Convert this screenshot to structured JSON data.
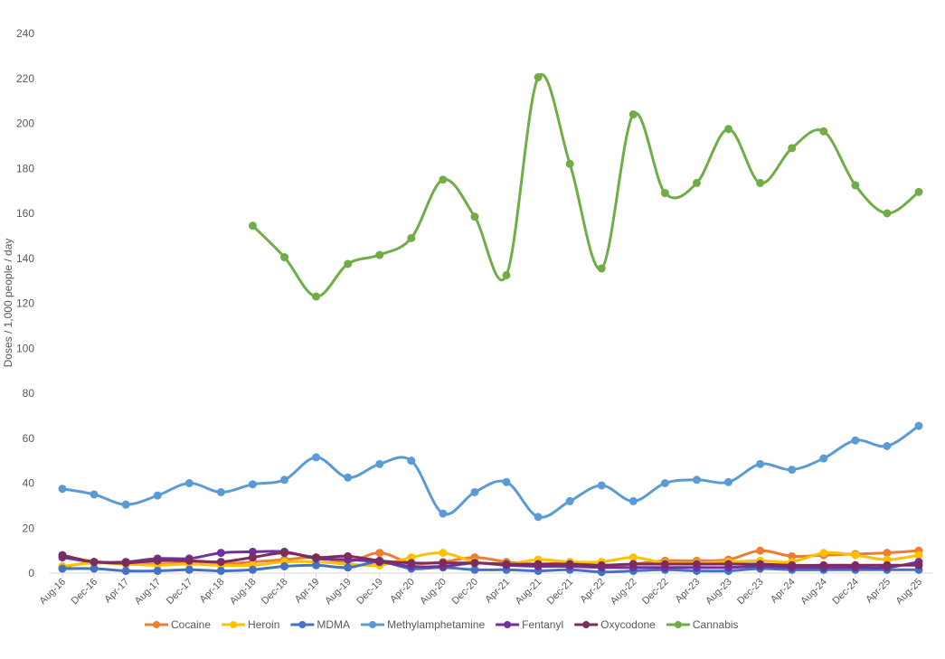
{
  "chart_data": {
    "type": "line",
    "title": "",
    "xlabel": "",
    "ylabel": "Doses / 1,000 people / day",
    "ylim": [
      0,
      240
    ],
    "yticks": [
      0,
      20,
      40,
      60,
      80,
      100,
      120,
      140,
      160,
      180,
      200,
      220,
      240
    ],
    "grid": false,
    "legend_position": "bottom",
    "smooth": true,
    "categories": [
      "Aug-16",
      "Dec-16",
      "Apr-17",
      "Aug-17",
      "Dec-17",
      "Apr-18",
      "Aug-18",
      "Dec-18",
      "Apr-19",
      "Aug-19",
      "Dec-19",
      "Apr-20",
      "Aug-20",
      "Dec-20",
      "Apr-21",
      "Aug-21",
      "Dec-21",
      "Apr-22",
      "Aug-22",
      "Dec-22",
      "Apr-23",
      "Aug-23",
      "Dec-23",
      "Apr-24",
      "Aug-24",
      "Dec-24",
      "Apr-25",
      "Aug-25"
    ],
    "series": [
      {
        "name": "Cocaine",
        "color": "#ED7D31",
        "values": [
          2.5,
          5,
          4,
          4,
          4.5,
          4,
          5,
          6,
          7,
          5,
          9,
          4.5,
          5,
          7,
          5,
          4,
          4.5,
          3,
          4,
          5.5,
          5.5,
          6,
          10,
          7.5,
          8,
          8.5,
          9,
          10
        ]
      },
      {
        "name": "Heroin",
        "color": "#FFC000",
        "values": [
          3,
          4.5,
          4,
          3.5,
          4,
          3.5,
          3.5,
          5,
          5,
          4,
          3.5,
          7,
          9,
          5,
          4,
          6,
          5,
          5,
          7,
          4.5,
          4.5,
          5,
          5.5,
          5,
          9,
          8,
          6,
          8
        ]
      },
      {
        "name": "MDMA",
        "color": "#4472C4",
        "values": [
          2,
          2,
          1,
          1,
          1.5,
          1,
          1.5,
          3,
          3.5,
          2.5,
          5,
          2,
          2.5,
          1.5,
          1.5,
          1,
          1.5,
          0.5,
          1,
          1.5,
          1,
          1,
          2,
          1.5,
          1.5,
          1.5,
          1.5,
          1.5
        ]
      },
      {
        "name": "Methylamphetamine",
        "color": "#5B9BD5",
        "values": [
          37.5,
          35,
          30.5,
          34.5,
          40,
          36,
          39.5,
          41.5,
          51.5,
          42.5,
          48.5,
          50,
          26.5,
          36,
          40.5,
          25,
          32,
          39,
          32,
          40,
          41.5,
          40.5,
          48.5,
          46,
          51,
          59,
          56.5,
          65.5
        ]
      },
      {
        "name": "Fentanyl",
        "color": "#7030A0",
        "values": [
          7,
          5,
          5,
          6.5,
          6.5,
          9,
          9.5,
          9.5,
          6.5,
          6,
          5,
          3,
          3,
          4.5,
          3.5,
          3,
          3,
          2.5,
          2.5,
          2.5,
          2.5,
          2.5,
          3,
          2.5,
          2.5,
          2.5,
          2.5,
          5
        ]
      },
      {
        "name": "Oxycodone",
        "color": "#7B2D5F",
        "values": [
          8,
          5,
          4.5,
          5.5,
          5.5,
          5,
          7,
          9,
          7,
          7.5,
          5.5,
          4.5,
          4.5,
          4.5,
          4,
          4,
          4,
          3.5,
          4,
          4,
          4,
          4,
          4,
          3.5,
          3.5,
          3.5,
          3.5,
          3.5
        ]
      },
      {
        "name": "Cannabis",
        "color": "#70AD47",
        "values": [
          null,
          null,
          null,
          null,
          null,
          null,
          154.5,
          140.5,
          123,
          137.5,
          141.5,
          149,
          175,
          158.5,
          132.5,
          220.5,
          182,
          135.5,
          204,
          169,
          173.5,
          197.5,
          173.5,
          189,
          196.5,
          172.5,
          160,
          169.5
        ]
      }
    ]
  }
}
